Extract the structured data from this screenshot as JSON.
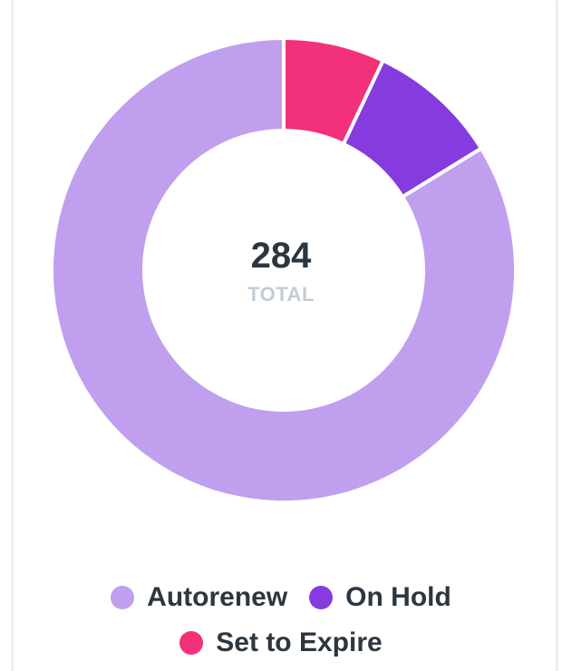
{
  "chart_data": {
    "type": "pie",
    "variant": "donut",
    "categories": [
      "Autorenew",
      "On Hold",
      "Set to Expire"
    ],
    "values": [
      238,
      26,
      20
    ],
    "colors": [
      "#c09fee",
      "#863bde",
      "#f3307a"
    ],
    "center_value": "284",
    "center_label": "TOTAL",
    "legend_position": "bottom"
  }
}
